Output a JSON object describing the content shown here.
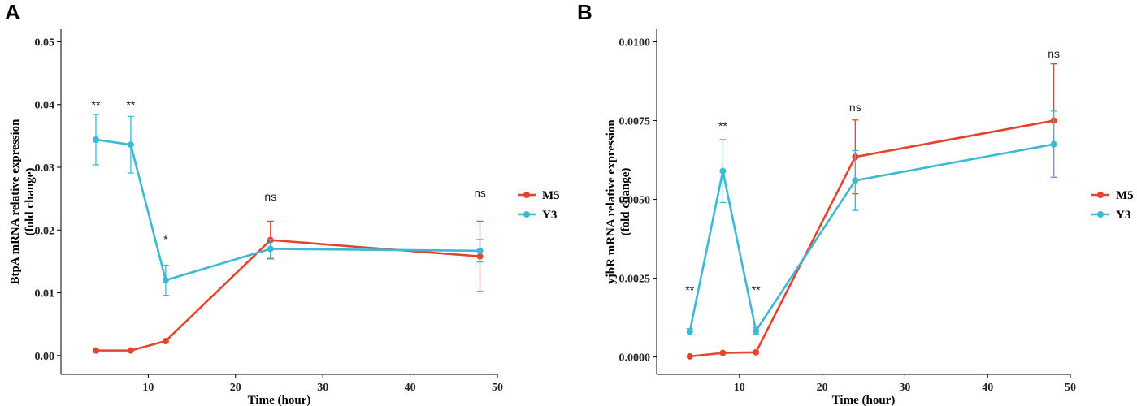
{
  "colors": {
    "M5": "#e5442c",
    "Y3": "#3cb9d4",
    "axis": "#000000"
  },
  "chart_data": [
    {
      "type": "line",
      "panel_label": "A",
      "xlabel": "Time (hour)",
      "ylabel_line1": "BtpA mRNA relative expression",
      "ylabel_line2": "(fold change)",
      "xlim": [
        0,
        50
      ],
      "ylim": [
        -0.003,
        0.052
      ],
      "xticks": [
        10,
        20,
        30,
        40,
        50
      ],
      "xtick_labels": [
        "10",
        "20",
        "30",
        "40",
        "50"
      ],
      "yticks": [
        0,
        0.01,
        0.02,
        0.03,
        0.04,
        0.05
      ],
      "ytick_labels": [
        "0.00",
        "0.01",
        "0.02",
        "0.03",
        "0.04",
        "0.05"
      ],
      "x": [
        4,
        8,
        12,
        24,
        48
      ],
      "series": [
        {
          "name": "M5",
          "values": [
            0.0008,
            0.0008,
            0.0023,
            0.0184,
            0.0158
          ],
          "err": [
            0,
            0,
            0,
            0.003,
            0.0056
          ]
        },
        {
          "name": "Y3",
          "values": [
            0.0344,
            0.0336,
            0.012,
            0.017,
            0.0167
          ],
          "err": [
            0.004,
            0.0045,
            0.0024,
            0.0015,
            0.0018
          ]
        }
      ],
      "annotations": [
        {
          "x": 4,
          "y": 0.0393,
          "text": "**"
        },
        {
          "x": 8,
          "y": 0.0393,
          "text": "**"
        },
        {
          "x": 12,
          "y": 0.0179,
          "text": "*"
        },
        {
          "x": 24,
          "y": 0.0247,
          "text": "ns"
        },
        {
          "x": 48,
          "y": 0.0253,
          "text": "ns"
        }
      ],
      "legend": [
        "M5",
        "Y3"
      ]
    },
    {
      "type": "line",
      "panel_label": "B",
      "xlabel": "Time (hour)",
      "ylabel_line1": "yjbR mRNA relative expression",
      "ylabel_line2": "(fold change)",
      "xlim": [
        0,
        50
      ],
      "ylim": [
        -0.00055,
        0.0104
      ],
      "xticks": [
        10,
        20,
        30,
        40,
        50
      ],
      "xtick_labels": [
        "10",
        "20",
        "30",
        "40",
        "50"
      ],
      "yticks": [
        0,
        0.0025,
        0.005,
        0.0075,
        0.01
      ],
      "ytick_labels": [
        "0.0000",
        "0.0025",
        "0.0050",
        "0.0075",
        "0.0100"
      ],
      "x": [
        4,
        8,
        12,
        24,
        48
      ],
      "series": [
        {
          "name": "M5",
          "values": [
            2e-05,
            0.00013,
            0.00015,
            0.00635,
            0.0075
          ],
          "err": [
            0,
            0,
            0,
            0.00117,
            0.0018
          ]
        },
        {
          "name": "Y3",
          "values": [
            0.0008,
            0.0059,
            0.00083,
            0.0056,
            0.00675
          ],
          "err": [
            0.0001,
            0.001,
            0.0001,
            0.00095,
            0.00105
          ]
        }
      ],
      "annotations": [
        {
          "x": 4,
          "y": 0.002,
          "text": "**"
        },
        {
          "x": 8,
          "y": 0.0072,
          "text": "**"
        },
        {
          "x": 12,
          "y": 0.002,
          "text": "**"
        },
        {
          "x": 24,
          "y": 0.0078,
          "text": "ns"
        },
        {
          "x": 48,
          "y": 0.0095,
          "text": "ns"
        }
      ],
      "legend": [
        "M5",
        "Y3"
      ]
    }
  ]
}
